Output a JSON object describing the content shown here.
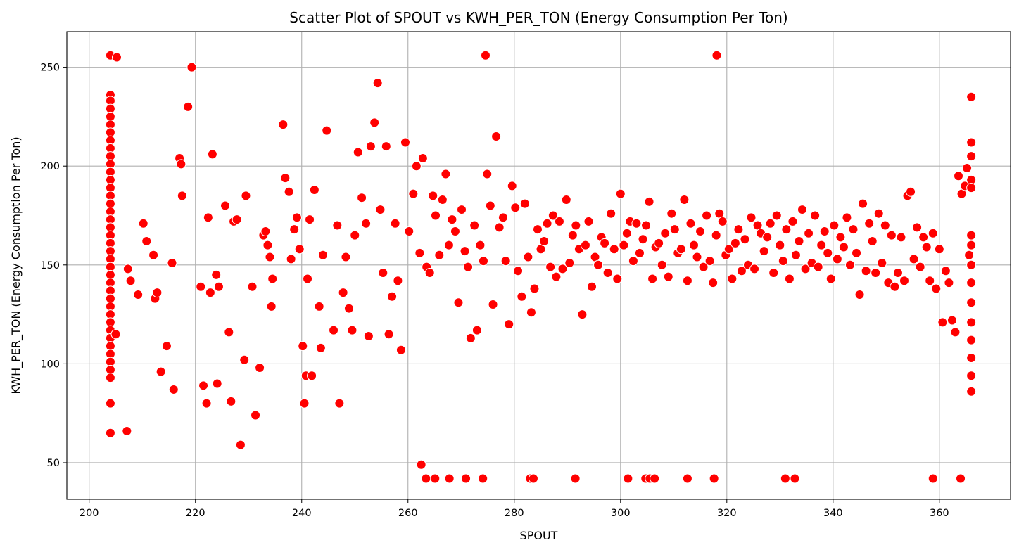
{
  "chart_data": {
    "type": "scatter",
    "title": "Scatter Plot of SPOUT vs KWH_PER_TON (Energy Consumption Per Ton)",
    "xlabel": "SPOUT",
    "ylabel": "KWH_PER_TON (Energy Consumption Per Ton)",
    "xlim": [
      195.8,
      373.4
    ],
    "ylim": [
      31.5,
      268
    ],
    "xticks": [
      200,
      220,
      240,
      260,
      280,
      300,
      320,
      340,
      360
    ],
    "yticks": [
      50,
      100,
      150,
      200,
      250
    ],
    "grid": true,
    "marker_color": "#ff0000",
    "marker_edge_color": "#ffffff",
    "series": [
      {
        "x": [
          204,
          204,
          204,
          204,
          204,
          204,
          204,
          204,
          204,
          204,
          204,
          204,
          204,
          204,
          204,
          204,
          204,
          204,
          204,
          204,
          204,
          204,
          204,
          204,
          204,
          204,
          204,
          204,
          204,
          204,
          204,
          204,
          204,
          204,
          204,
          204,
          204,
          204,
          204,
          204,
          205,
          205.2,
          207.1,
          207.3,
          207.8,
          209.2,
          210.2,
          210.8,
          212.1,
          212.4,
          212.8,
          213.5,
          214.6,
          215.6,
          215.9,
          217,
          217.3,
          217.5,
          218.6,
          219.3,
          221,
          221.5,
          222.1,
          222.4,
          222.8,
          223.2,
          223.9,
          224.1,
          224.4,
          225.6,
          226.3,
          226.7,
          227.2,
          227.8,
          228.5,
          229.2,
          229.5,
          230.7,
          231.3,
          232.1,
          232.8,
          233.2,
          233.6,
          234,
          234.3,
          234.5,
          236.5,
          236.9,
          237.6,
          238,
          238.6,
          239.1,
          239.6,
          240.2,
          240.5,
          240.8,
          241.1,
          241.5,
          241.9,
          242.4,
          243.3,
          243.6,
          244,
          244.7,
          246,
          246.7,
          247.1,
          247.8,
          248.3,
          248.9,
          249.5,
          250,
          250.6,
          251.3,
          252.1,
          252.6,
          253,
          253.7,
          254.3,
          254.8,
          255.3,
          255.9,
          256.4,
          257,
          257.6,
          258.1,
          258.7,
          259.5,
          260.2,
          261,
          261.6,
          262.2,
          262.8,
          263.5,
          264.1,
          264.7,
          265.2,
          265.9,
          266.5,
          267.1,
          267.7,
          268.3,
          268.9,
          269.5,
          270.1,
          270.7,
          271.3,
          271.8,
          272.5,
          273,
          273.6,
          274.2,
          274.9,
          275.5,
          276,
          276.6,
          277.2,
          277.9,
          278.4,
          279,
          279.6,
          280.2,
          280.7,
          281.4,
          282,
          282.6,
          283.2,
          283.8,
          284.4,
          285,
          285.6,
          286.2,
          286.8,
          287.3,
          287.9,
          288.5,
          289.1,
          289.8,
          290.4,
          291,
          291.6,
          292.2,
          292.8,
          293.4,
          294,
          294.6,
          295.2,
          295.8,
          296.4,
          297,
          297.6,
          298.2,
          298.8,
          299.4,
          300,
          300.6,
          301.2,
          301.8,
          302.4,
          303,
          303.6,
          304.2,
          304.8,
          305.4,
          306,
          306.6,
          307.2,
          307.8,
          308.4,
          309,
          309.6,
          310.2,
          310.8,
          311.4,
          312,
          312.6,
          313.2,
          313.8,
          314.4,
          315,
          315.6,
          316.2,
          316.8,
          317.4,
          318,
          318.6,
          319.2,
          319.8,
          320.4,
          321,
          321.6,
          322.2,
          322.8,
          323.4,
          324,
          324.6,
          325.2,
          325.8,
          326.4,
          327,
          327.6,
          328.2,
          328.8,
          329.4,
          330,
          330.6,
          331.2,
          331.8,
          332.4,
          333,
          333.6,
          334.2,
          334.8,
          335.4,
          336,
          336.6,
          337.2,
          337.8,
          338.4,
          339,
          339.6,
          340.2,
          340.8,
          341.4,
          342,
          342.6,
          343.2,
          343.8,
          344.4,
          345,
          345.6,
          346.2,
          346.8,
          347.4,
          348,
          348.6,
          349.2,
          349.8,
          350.4,
          351,
          351.6,
          352.2,
          352.8,
          353.4,
          354,
          354.6,
          355.2,
          355.8,
          356.4,
          357,
          357.6,
          358.2,
          358.8,
          359.4,
          360,
          360.6,
          361.2,
          361.8,
          362.4,
          363,
          363.6,
          364.2,
          364.8,
          365.2,
          365.6,
          366,
          366,
          366,
          366,
          366,
          366,
          366,
          366,
          366,
          366,
          366,
          366,
          366,
          366,
          366,
          262.5,
          263.4,
          265.1,
          267.8,
          270.9,
          274.1,
          274.6,
          283,
          283.6,
          291.5,
          301.4,
          304.7,
          305.5,
          306.4,
          312.6,
          317.6,
          318.1,
          331,
          332.8,
          358.8,
          364
        ],
        "y": [
          256,
          236,
          233,
          229,
          225,
          221,
          217,
          213,
          209,
          205,
          201,
          197,
          193,
          189,
          185,
          181,
          177,
          173,
          169,
          165,
          161,
          157,
          153,
          149,
          145,
          141,
          137,
          133,
          129,
          125,
          121,
          117,
          113,
          109,
          105,
          101,
          97,
          93,
          80,
          65,
          115,
          255,
          66,
          148,
          142,
          135,
          171,
          162,
          155,
          133,
          136,
          96,
          109,
          151,
          87,
          204,
          201,
          185,
          230,
          250,
          139,
          89,
          80,
          174,
          136,
          206,
          145,
          90,
          139,
          180,
          116,
          81,
          172,
          173,
          59,
          102,
          185,
          139,
          74,
          98,
          165,
          167,
          160,
          154,
          129,
          143,
          221,
          194,
          187,
          153,
          168,
          174,
          158,
          109,
          80,
          94,
          143,
          173,
          94,
          188,
          129,
          108,
          155,
          218,
          117,
          170,
          80,
          136,
          154,
          128,
          117,
          165,
          207,
          184,
          171,
          114,
          210,
          222,
          242,
          178,
          146,
          210,
          115,
          134,
          171,
          142,
          107,
          212,
          167,
          186,
          200,
          156,
          204,
          149,
          146,
          185,
          175,
          155,
          183,
          196,
          160,
          173,
          167,
          131,
          178,
          157,
          149,
          113,
          170,
          117,
          160,
          152,
          196,
          180,
          130,
          215,
          169,
          174,
          152,
          120,
          190,
          179,
          147,
          134,
          181,
          154,
          126,
          138,
          168,
          158,
          162,
          171,
          149,
          175,
          144,
          172,
          148,
          183,
          151,
          165,
          170,
          158,
          125,
          160,
          172,
          139,
          154,
          150,
          164,
          161,
          146,
          176,
          158,
          143,
          186,
          160,
          166,
          172,
          152,
          171,
          156,
          163,
          170,
          182,
          143,
          159,
          161,
          150,
          166,
          144,
          176,
          168,
          156,
          158,
          183,
          142,
          171,
          160,
          154,
          167,
          149,
          175,
          152,
          141,
          165,
          176,
          172,
          155,
          158,
          143,
          161,
          168,
          147,
          163,
          150,
          174,
          148,
          170,
          166,
          157,
          164,
          171,
          146,
          175,
          160,
          152,
          168,
          143,
          172,
          155,
          162,
          178,
          148,
          166,
          151,
          175,
          149,
          160,
          167,
          156,
          143,
          170,
          153,
          164,
          159,
          174,
          150,
          168,
          156,
          135,
          181,
          147,
          171,
          162,
          146,
          176,
          151,
          170,
          141,
          165,
          139,
          146,
          164,
          142,
          185,
          187,
          153,
          169,
          149,
          164,
          159,
          142,
          166,
          138,
          158,
          121,
          147,
          141,
          122,
          116,
          195,
          186,
          190,
          199,
          155,
          235,
          205,
          212,
          193,
          189,
          165,
          160,
          150,
          141,
          131,
          121,
          112,
          103,
          94,
          86,
          49,
          42,
          42,
          42,
          42,
          42,
          256,
          42,
          42,
          42,
          42,
          42,
          42,
          42,
          42,
          42,
          256,
          42,
          42,
          42,
          42
        ]
      }
    ]
  }
}
